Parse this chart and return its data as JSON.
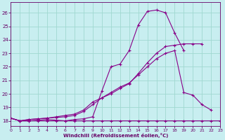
{
  "background_color": "#c8eef0",
  "grid_color": "#a0d8d0",
  "line_color": "#880088",
  "xlabel": "Windchill (Refroidissement éolien,°C)",
  "xlim": [
    0,
    23
  ],
  "ylim": [
    17.6,
    26.8
  ],
  "xticks": [
    0,
    1,
    2,
    3,
    4,
    5,
    6,
    7,
    8,
    9,
    10,
    11,
    12,
    13,
    14,
    15,
    16,
    17,
    18,
    19,
    20,
    21,
    22,
    23
  ],
  "yticks": [
    18,
    19,
    20,
    21,
    22,
    23,
    24,
    25,
    26
  ],
  "series": [
    {
      "x": [
        0,
        1,
        2,
        3,
        4,
        5,
        6,
        7,
        8,
        9,
        10,
        11,
        12,
        13,
        14,
        15,
        16,
        17,
        18,
        19,
        20,
        21
      ],
      "y": [
        18.2,
        18.0,
        18.0,
        18.05,
        18.1,
        18.05,
        18.0,
        18.1,
        18.15,
        18.3,
        20.2,
        22.0,
        22.2,
        23.2,
        25.1,
        26.1,
        26.2,
        26.0,
        24.5,
        23.2,
        null,
        null
      ]
    },
    {
      "x": [
        0,
        1,
        2,
        3,
        4,
        5,
        6,
        7,
        8,
        9,
        10,
        11,
        12,
        13,
        14,
        15,
        16,
        17,
        18,
        19,
        20,
        21,
        22,
        23
      ],
      "y": [
        18.2,
        18.0,
        18.0,
        18.0,
        18.0,
        18.0,
        18.0,
        18.0,
        18.0,
        18.0,
        18.0,
        18.0,
        18.0,
        18.0,
        18.0,
        18.0,
        18.0,
        18.0,
        18.0,
        18.0,
        18.0,
        18.0,
        18.0,
        18.0
      ]
    },
    {
      "x": [
        0,
        1,
        2,
        3,
        4,
        5,
        6,
        7,
        8,
        9,
        10,
        11,
        12,
        13,
        14,
        15,
        16,
        17,
        18,
        19,
        20,
        21,
        22
      ],
      "y": [
        18.2,
        18.0,
        18.1,
        18.15,
        18.2,
        18.25,
        18.3,
        18.4,
        18.7,
        19.2,
        19.7,
        20.1,
        20.5,
        20.8,
        21.4,
        22.0,
        22.6,
        23.0,
        23.2,
        20.1,
        19.9,
        19.2,
        18.8
      ]
    },
    {
      "x": [
        0,
        1,
        2,
        3,
        4,
        5,
        6,
        7,
        8,
        9,
        10,
        11,
        12,
        13,
        14,
        15,
        16,
        17,
        18,
        19,
        20,
        21,
        22,
        23
      ],
      "y": [
        18.2,
        18.0,
        18.1,
        18.15,
        18.2,
        18.3,
        18.4,
        18.5,
        18.8,
        19.4,
        19.7,
        20.0,
        20.4,
        20.75,
        21.5,
        22.3,
        23.0,
        23.5,
        23.6,
        23.7,
        23.7,
        23.7,
        null,
        null
      ]
    }
  ]
}
